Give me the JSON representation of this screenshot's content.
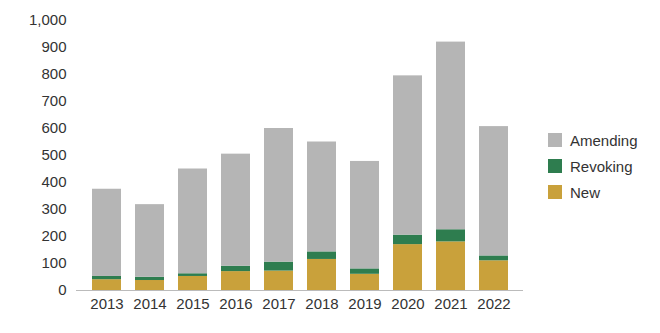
{
  "chart_data": {
    "type": "bar",
    "stacked": true,
    "categories": [
      "2013",
      "2014",
      "2015",
      "2016",
      "2017",
      "2018",
      "2019",
      "2020",
      "2021",
      "2022"
    ],
    "series": [
      {
        "name": "New",
        "color": "#c9a13b",
        "values": [
          40,
          37,
          52,
          70,
          72,
          115,
          60,
          170,
          180,
          110
        ]
      },
      {
        "name": "Revoking",
        "color": "#2e7d4f",
        "values": [
          12,
          12,
          10,
          20,
          33,
          28,
          20,
          35,
          45,
          18
        ]
      },
      {
        "name": "Amending",
        "color": "#b5b5b5",
        "values": [
          323,
          269,
          388,
          415,
          495,
          407,
          398,
          590,
          695,
          479
        ]
      }
    ],
    "ylim": [
      0,
      1000
    ],
    "yticks": [
      0,
      100,
      200,
      300,
      400,
      500,
      600,
      700,
      800,
      900,
      {
        "value": 1000,
        "label": "1,000"
      }
    ],
    "grid": false,
    "legend": "right"
  }
}
